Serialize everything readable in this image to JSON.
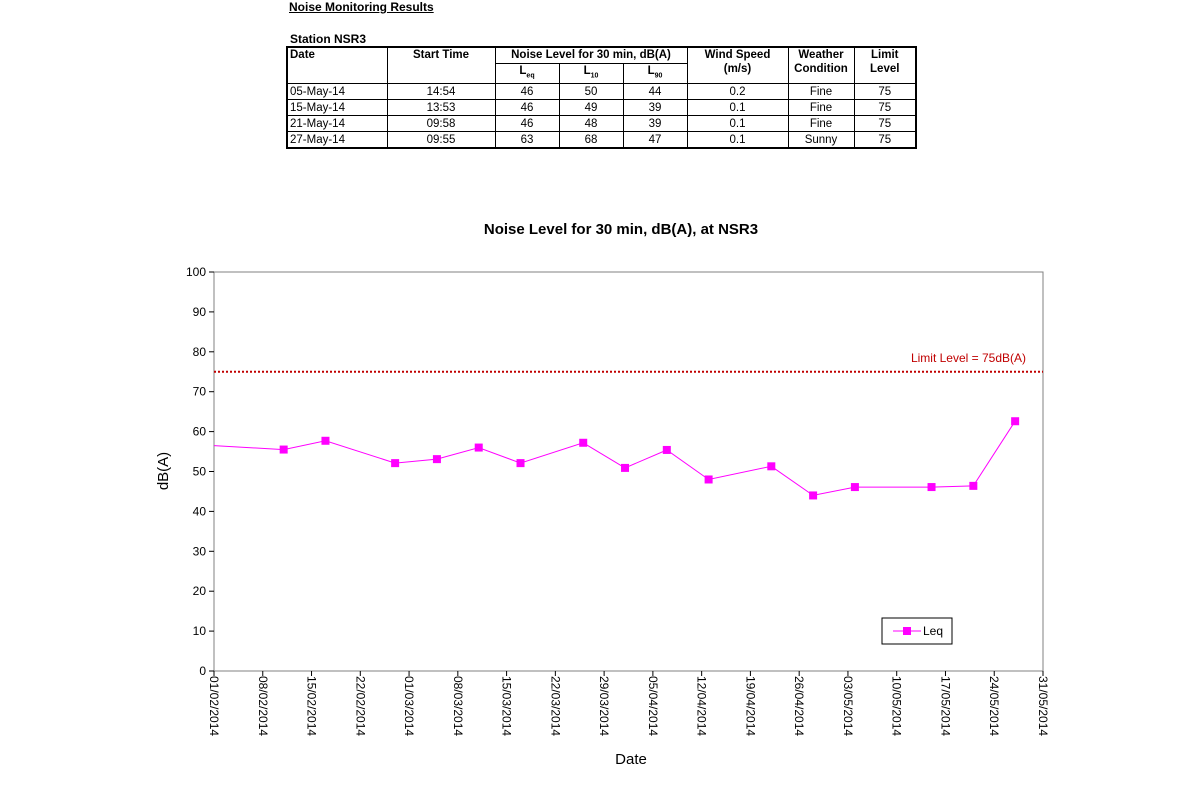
{
  "report": {
    "title": "Noise Monitoring Results",
    "station": "Station NSR3"
  },
  "table": {
    "headers": {
      "date": "Date",
      "start_time": "Start Time",
      "noise_group": "Noise Level for 30 min, dB(A)",
      "leq_main": "L",
      "leq_sub": "eq",
      "l10_main": "L",
      "l10_sub": "10",
      "l90_main": "L",
      "l90_sub": "90",
      "wind_line1": "Wind Speed",
      "wind_line2": "(m/s)",
      "weather_line1": "Weather",
      "weather_line2": "Condition",
      "limit_line1": "Limit",
      "limit_line2": "Level"
    },
    "rows": [
      {
        "date": "05-May-14",
        "start": "14:54",
        "leq": "46",
        "l10": "50",
        "l90": "44",
        "wind": "0.2",
        "weather": "Fine",
        "limit": "75"
      },
      {
        "date": "15-May-14",
        "start": "13:53",
        "leq": "46",
        "l10": "49",
        "l90": "39",
        "wind": "0.1",
        "weather": "Fine",
        "limit": "75"
      },
      {
        "date": "21-May-14",
        "start": "09:58",
        "leq": "46",
        "l10": "48",
        "l90": "39",
        "wind": "0.1",
        "weather": "Fine",
        "limit": "75"
      },
      {
        "date": "27-May-14",
        "start": "09:55",
        "leq": "63",
        "l10": "68",
        "l90": "47",
        "wind": "0.1",
        "weather": "Sunny",
        "limit": "75"
      }
    ]
  },
  "chart_data": {
    "type": "line",
    "title": "Noise Level for 30 min, dB(A), at NSR3",
    "xlabel": "Date",
    "ylabel": "dB(A)",
    "ylim": [
      0,
      100
    ],
    "yticks": [
      0,
      10,
      20,
      30,
      40,
      50,
      60,
      70,
      80,
      90,
      100
    ],
    "xlim": [
      "2014-02-01",
      "2014-05-31"
    ],
    "xticks": [
      "01/02/2014",
      "08/02/2014",
      "15/02/2014",
      "22/02/2014",
      "01/03/2014",
      "08/03/2014",
      "15/03/2014",
      "22/03/2014",
      "29/03/2014",
      "05/04/2014",
      "12/04/2014",
      "19/04/2014",
      "26/04/2014",
      "03/05/2014",
      "10/05/2014",
      "17/05/2014",
      "24/05/2014",
      "31/05/2014"
    ],
    "series": [
      {
        "name": "Leq",
        "color": "#ff00ff",
        "marker": "square",
        "points": [
          {
            "x": "2014-02-01",
            "y": 56.5,
            "marker": false
          },
          {
            "x": "2014-02-11",
            "y": 55.5
          },
          {
            "x": "2014-02-17",
            "y": 57.7
          },
          {
            "x": "2014-02-27",
            "y": 52.1
          },
          {
            "x": "2014-03-05",
            "y": 53.1
          },
          {
            "x": "2014-03-11",
            "y": 56.0
          },
          {
            "x": "2014-03-17",
            "y": 52.1
          },
          {
            "x": "2014-03-26",
            "y": 57.2
          },
          {
            "x": "2014-04-01",
            "y": 50.9
          },
          {
            "x": "2014-04-07",
            "y": 55.4
          },
          {
            "x": "2014-04-13",
            "y": 48.0
          },
          {
            "x": "2014-04-22",
            "y": 51.3
          },
          {
            "x": "2014-04-28",
            "y": 44.0
          },
          {
            "x": "2014-05-04",
            "y": 46.1
          },
          {
            "x": "2014-05-15",
            "y": 46.1
          },
          {
            "x": "2014-05-21",
            "y": 46.4
          },
          {
            "x": "2014-05-27",
            "y": 62.6
          }
        ]
      }
    ],
    "reference_line": {
      "label": "Limit Level  = 75dB(A)",
      "y": 75,
      "color": "#c00000",
      "style": "dotted"
    },
    "legend": {
      "position": "bottom-right"
    },
    "grid": false
  }
}
